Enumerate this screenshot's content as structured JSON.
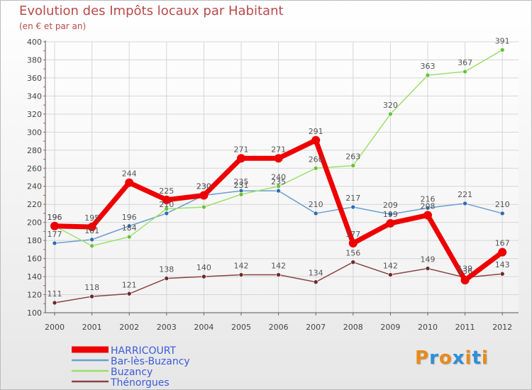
{
  "header": {
    "title": "Evolution des Impôts locaux par Habitant",
    "subtitle": "(en € et par an)"
  },
  "logo": {
    "text": "Proxiti",
    "colors": [
      "#e88a1a",
      "#2e8fd6",
      "#e88a1a",
      "#2e8fd6",
      "#e88a1a",
      "#2e8fd6",
      "#e88a1a"
    ]
  },
  "chart_data": {
    "type": "line",
    "title": "Evolution des Impôts locaux par Habitant",
    "subtitle": "(en € et par an)",
    "xlabel": "",
    "ylabel": "",
    "categories": [
      "2000",
      "2001",
      "2002",
      "2003",
      "2004",
      "2005",
      "2006",
      "2007",
      "2008",
      "2009",
      "2010",
      "2011",
      "2012"
    ],
    "ylim": [
      100,
      400
    ],
    "yticks": [
      100,
      120,
      140,
      160,
      180,
      200,
      220,
      240,
      260,
      280,
      300,
      320,
      340,
      360,
      380,
      400
    ],
    "grid": true,
    "legend_position": "bottom-left",
    "series": [
      {
        "name": "HARRICOURT",
        "color": "#ee0000",
        "marker_color": "#ee0000",
        "width": 7,
        "marker_r": 6,
        "values": [
          196,
          195,
          244,
          225,
          230,
          271,
          271,
          291,
          177,
          199,
          208,
          136,
          167
        ],
        "labels": [
          "196",
          "195",
          "244",
          "225",
          "230",
          "271",
          "271",
          "291",
          "177",
          "199",
          "208",
          "136",
          "167"
        ]
      },
      {
        "name": "Bar-lès-Buzancy",
        "color": "#6a9fd0",
        "marker_color": "#2f6db0",
        "width": 1.5,
        "marker_r": 3,
        "values": [
          177,
          181,
          196,
          210,
          230,
          235,
          235,
          210,
          217,
          209,
          216,
          221,
          210
        ],
        "labels": [
          "177",
          "181",
          "196",
          "210",
          "230",
          "235",
          "235",
          "210",
          "217",
          "209",
          "216",
          "221",
          "210"
        ]
      },
      {
        "name": "Buzancy",
        "color": "#9be06a",
        "marker_color": "#6ac23a",
        "width": 1.5,
        "marker_r": 3,
        "values": [
          196,
          174,
          184,
          215,
          217,
          231,
          240,
          260,
          263,
          320,
          363,
          367,
          391
        ],
        "labels": [
          "196",
          "",
          "184",
          "",
          "",
          "231",
          "240",
          "260",
          "263",
          "320",
          "363",
          "367",
          "391"
        ]
      },
      {
        "name": "Thénorgues",
        "color": "#8a4545",
        "marker_color": "#6e2a2a",
        "width": 1.5,
        "marker_r": 3,
        "values": [
          111,
          118,
          121,
          138,
          140,
          142,
          142,
          134,
          156,
          142,
          149,
          139,
          143
        ],
        "labels": [
          "111",
          "118",
          "121",
          "138",
          "140",
          "142",
          "142",
          "134",
          "156",
          "142",
          "149",
          "139",
          "143"
        ]
      }
    ]
  }
}
